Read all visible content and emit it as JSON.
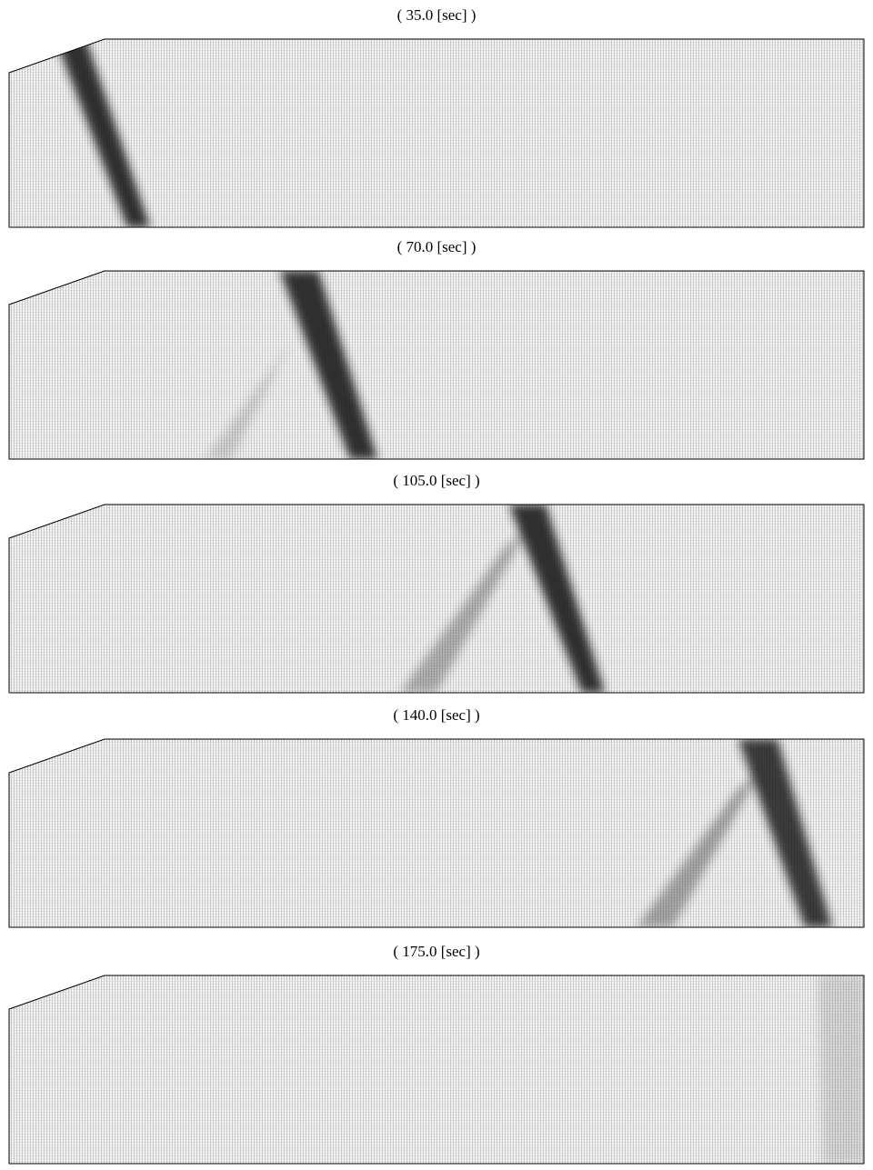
{
  "panels": [
    {
      "label": "( 35.0 [sec] )"
    },
    {
      "label": "( 70.0 [sec] )"
    },
    {
      "label": "( 105.0 [sec] )"
    },
    {
      "label": "( 140.0 [sec] )"
    },
    {
      "label": "( 175.0 [sec] )"
    }
  ]
}
